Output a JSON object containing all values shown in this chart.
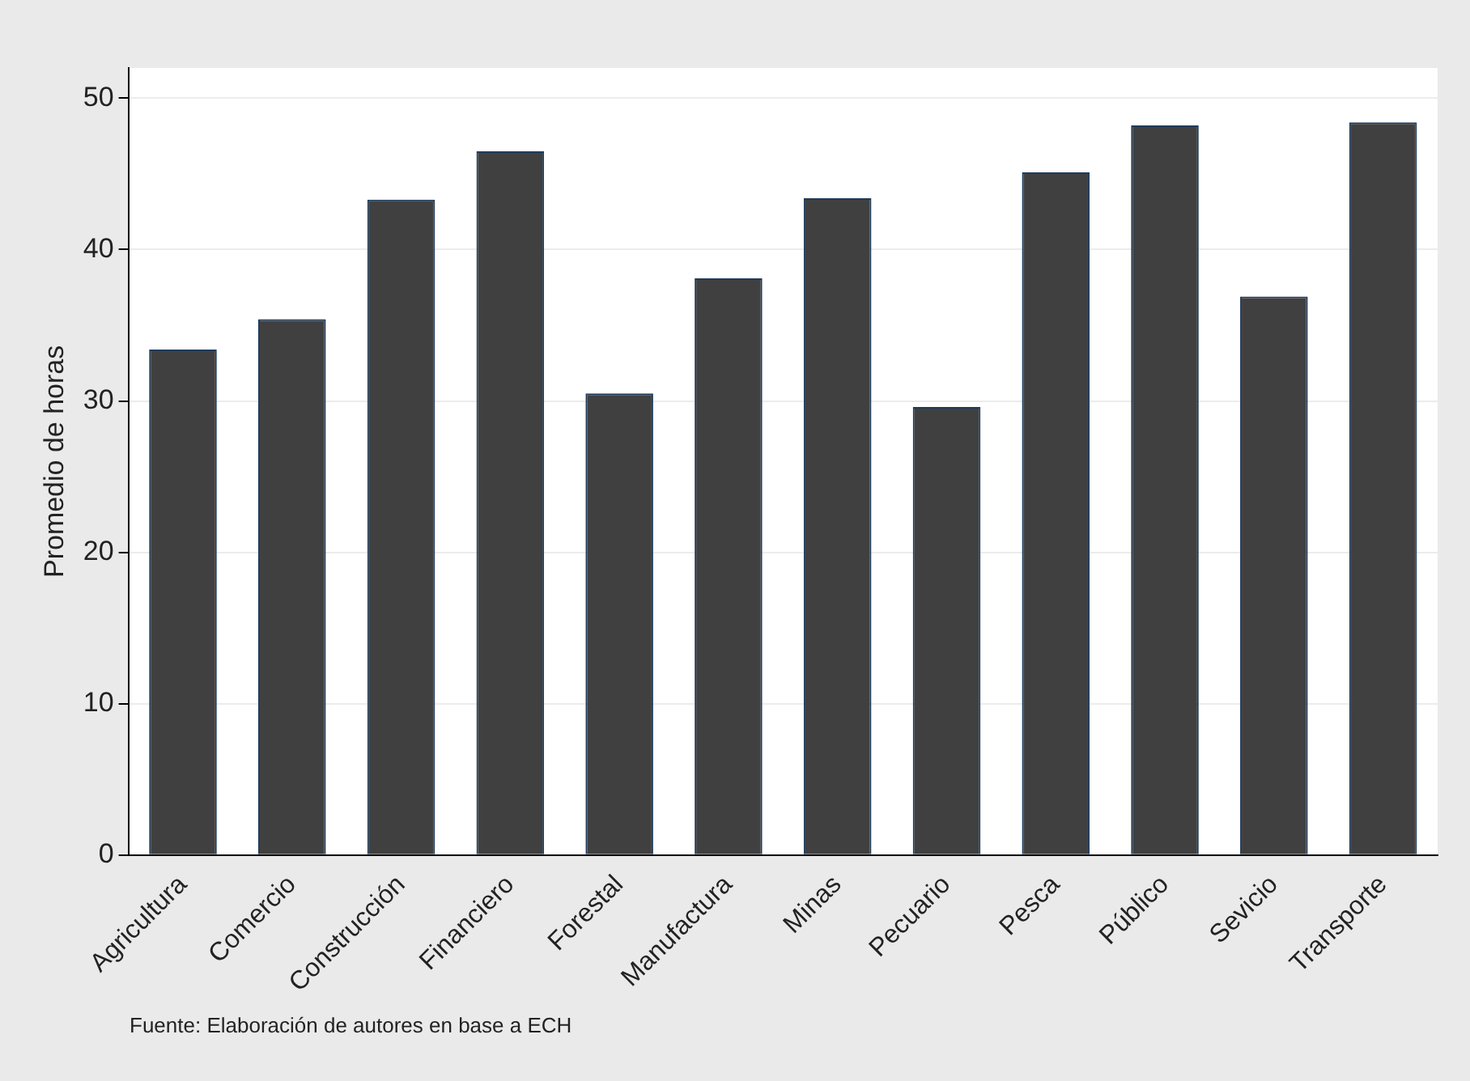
{
  "chart_data": {
    "type": "bar",
    "ylabel": "Promedio de horas",
    "categories": [
      "Agricultura",
      "Comercio",
      "Construcción",
      "Financiero",
      "Forestal",
      "Manufactura",
      "Minas",
      "Pecuario",
      "Pesca",
      "Público",
      "Sevicio",
      "Transporte"
    ],
    "values": [
      33.4,
      35.4,
      43.3,
      46.5,
      30.5,
      38.1,
      43.4,
      29.6,
      45.1,
      48.2,
      36.9,
      48.4
    ],
    "color": "#404040",
    "ylim": [
      0,
      52
    ],
    "yticks": [
      0,
      10,
      20,
      30,
      40,
      50
    ],
    "grid": "y",
    "annotations": [
      "Fuente: Elaboración de autores en base a ECH"
    ]
  }
}
